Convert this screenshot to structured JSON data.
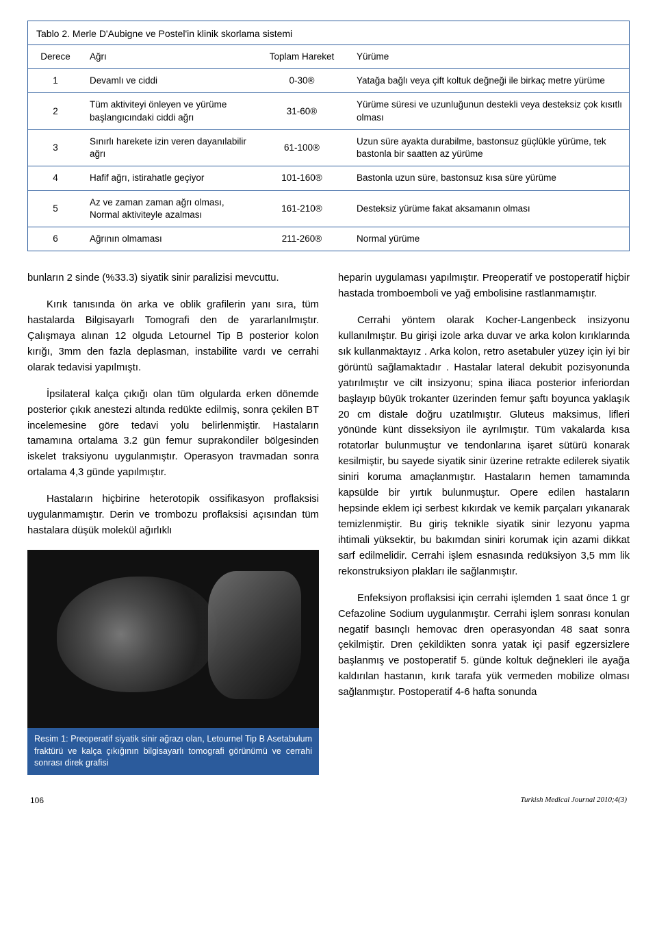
{
  "table": {
    "title": "Tablo 2. Merle D'Aubigne ve Postel'in klinik skorlama sistemi",
    "headers": {
      "c1": "Derece",
      "c2": "Ağrı",
      "c3": "Toplam Hareket",
      "c4": "Yürüme"
    },
    "rows": [
      {
        "d": "1",
        "a": "Devamlı ve ciddi",
        "t": "0-30®",
        "y": "Yatağa bağlı veya çift koltuk değneği ile birkaç metre yürüme"
      },
      {
        "d": "2",
        "a": "Tüm aktiviteyi önleyen ve yürüme başlangıcındaki ciddi ağrı",
        "t": "31-60®",
        "y": "Yürüme süresi ve uzunluğunun destekli veya desteksiz çok kısıtlı olması"
      },
      {
        "d": "3",
        "a": "Sınırlı harekete izin veren dayanılabilir ağrı",
        "t": "61-100®",
        "y": "Uzun süre ayakta durabilme, bastonsuz güçlükle yürüme, tek bastonla bir saatten az yürüme"
      },
      {
        "d": "4",
        "a": "Hafif ağrı, istirahatle geçiyor",
        "t": "101-160®",
        "y": "Bastonla uzun süre, bastonsuz kısa süre yürüme"
      },
      {
        "d": "5",
        "a": "Az ve zaman zaman ağrı olması, Normal aktiviteyle azalması",
        "t": "161-210®",
        "y": "Desteksiz yürüme fakat aksamanın olması"
      },
      {
        "d": "6",
        "a": "Ağrının olmaması",
        "t": "211-260®",
        "y": "Normal yürüme"
      }
    ]
  },
  "left": {
    "p1": "bunların 2 sinde (%33.3) siyatik sinir paralizisi mevcuttu.",
    "p2": "Kırık tanısında ön arka ve oblik grafilerin yanı sıra, tüm hastalarda Bilgisayarlı Tomografi den de yararlanılmıştır. Çalışmaya alınan 12 olguda Letournel Tip B posterior kolon kırığı, 3mm den fazla deplasman, instabilite vardı ve cerrahi olarak tedavisi yapılmıştı.",
    "p3": "İpsilateral kalça çıkığı olan tüm olgularda erken dönemde posterior çıkık anestezi altında redükte edilmiş, sonra çekilen BT incelemesine göre tedavi yolu belirlenmiştir. Hastaların tamamına ortalama 3.2 gün femur suprakondiler bölgesinden iskelet traksiyonu uygulanmıştır. Operasyon travmadan sonra ortalama 4,3 günde yapılmıştır.",
    "p4": "Hastaların hiçbirine heterotopik ossifikasyon proflaksisi uygulanmamıştır. Derin ve trombozu proflaksisi açısından tüm hastalara düşük molekül ağırlıklı"
  },
  "right": {
    "p1": "heparin uygulaması yapılmıştır. Preoperatif ve postoperatif hiçbir hastada tromboemboli ve yağ embolisine rastlanmamıştır.",
    "p2": "Cerrahi yöntem olarak Kocher-Langenbeck insizyonu kullanılmıştır. Bu girişi izole arka duvar ve arka kolon kırıklarında sık kullanmaktayız . Arka kolon, retro asetabuler yüzey için iyi bir görüntü sağlamaktadır . Hastalar lateral dekubit pozisyonunda yatırılmıştır ve cilt insizyonu; spina iliaca posterior inferiordan başlayıp büyük trokanter üzerinden femur şaftı boyunca yaklaşık 20 cm distale doğru uzatılmıştır. Gluteus maksimus, lifleri yönünde künt disseksiyon ile ayrılmıştır. Tüm vakalarda kısa rotatorlar bulunmuştur ve tendonlarına işaret sütürü konarak kesilmiştir, bu sayede siyatik sinir üzerine retrakte edilerek siyatik siniri koruma amaçlanmıştır.  Hastaların hemen tamamında kapsülde bir yırtık bulunmuştur. Opere edilen hastaların hepsinde eklem içi serbest kıkırdak ve kemik parçaları yıkanarak temizlenmiştir. Bu giriş teknikle siyatik sinir lezyonu yapma ihtimali yüksektir, bu bakımdan siniri korumak için azami dikkat sarf edilmelidir.  Cerrahi işlem esnasında redüksiyon 3,5 mm lik rekonstruksiyon plakları ile sağlanmıştır.",
    "p3": "Enfeksiyon proflaksisi için cerrahi işlemden 1 saat önce 1 gr Cefazoline Sodium uygulanmıştır. Cerrahi işlem sonrası konulan negatif basınçlı hemovac dren operasyondan 48 saat sonra çekilmiştir. Dren çekildikten sonra yatak içi pasif egzersizlere başlanmış ve postoperatif 5. günde koltuk değnekleri ile ayağa kaldırılan hastanın, kırık tarafa yük vermeden mobilize olması sağlanmıştır. Postoperatif 4-6 hafta sonunda"
  },
  "figure": {
    "caption": "Resim 1: Preoperatif siyatik sinir ağrazı olan, Letournel Tip B Asetabulum fraktürü ve kalça çıkığının bilgisayarlı tomografi görünümü ve cerrahi sonrası direk grafisi"
  },
  "footer": {
    "page": "106",
    "cite": "Turkish Medical Journal 2010;4(3)"
  },
  "style": {
    "border_color": "#2b5b9c",
    "caption_bg": "#2b5b9c",
    "caption_text": "#ffffff",
    "body_fontsize": 14.8,
    "table_fontsize": 13.5
  }
}
